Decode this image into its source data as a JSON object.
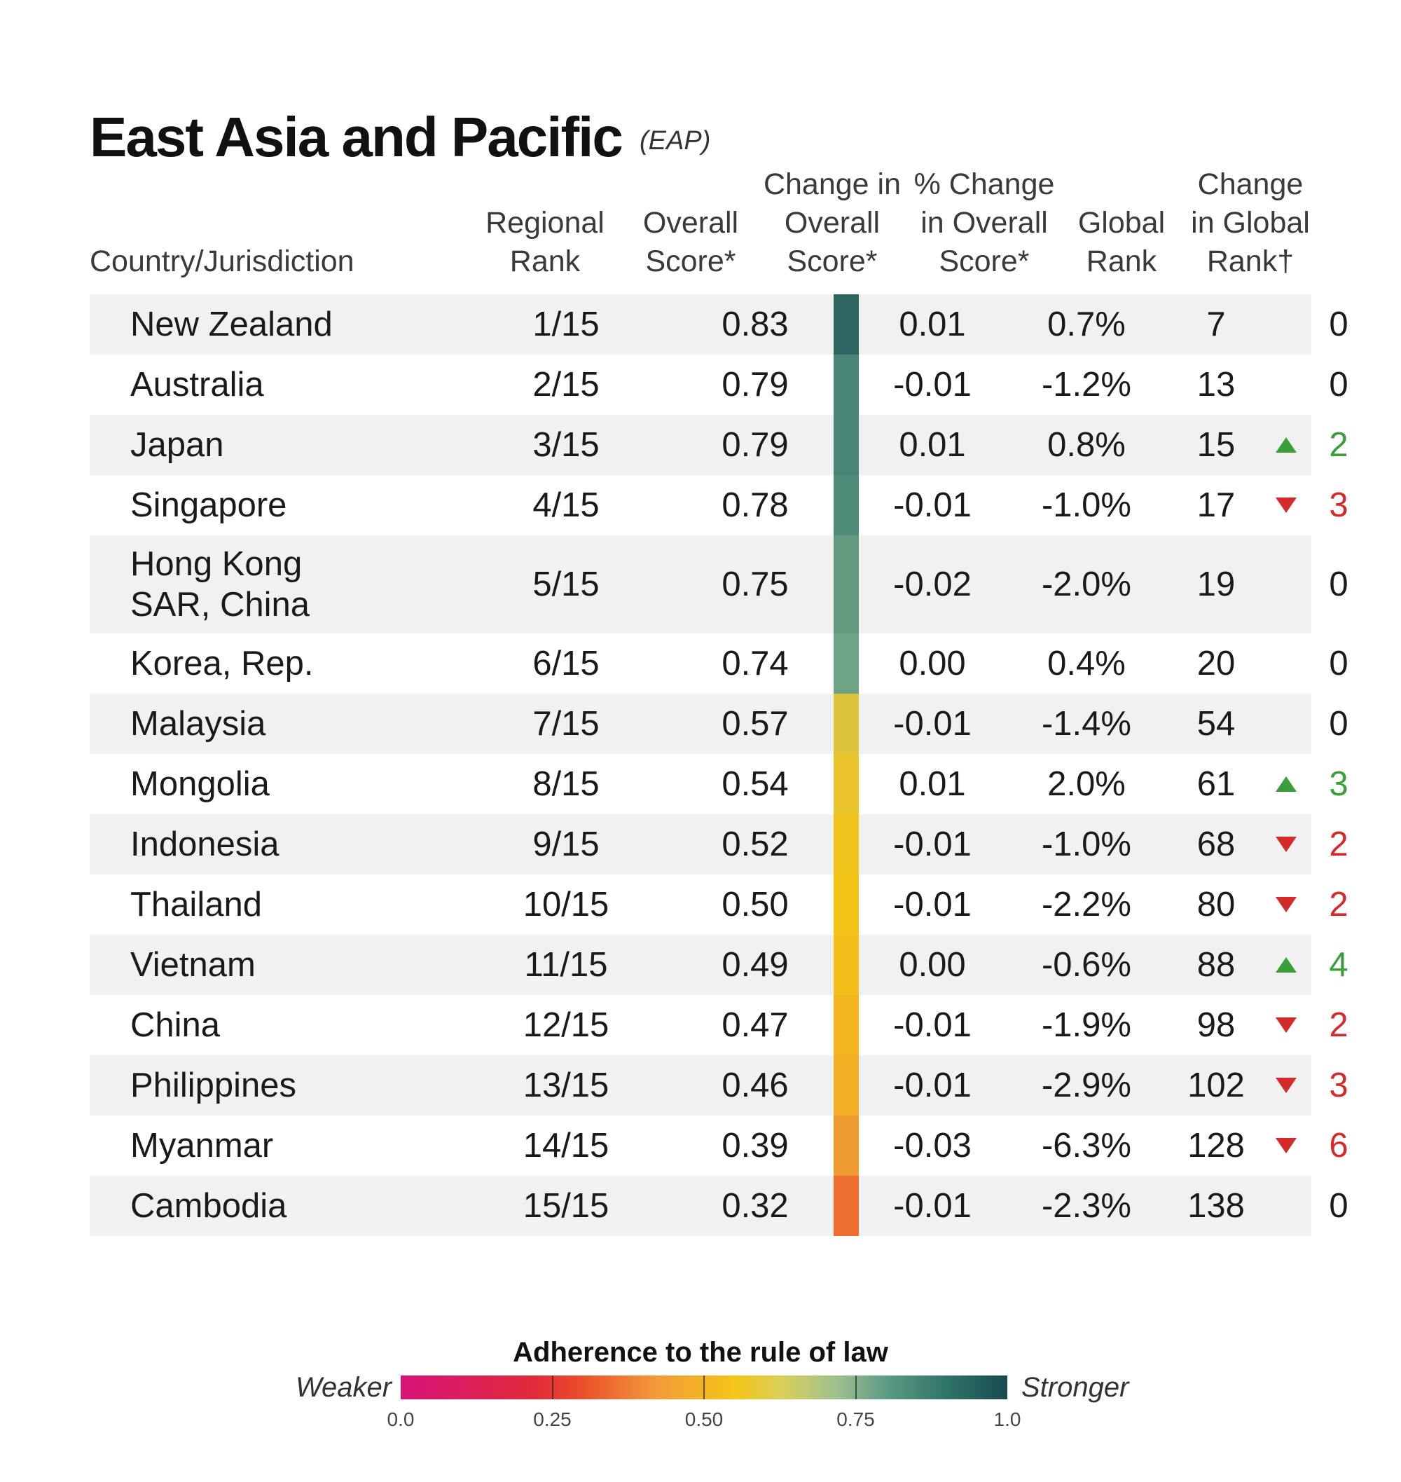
{
  "chart_data": {
    "type": "table",
    "title": "East Asia and Pacific",
    "subtitle": "(EAP)",
    "columns": [
      "Country/Jurisdiction",
      "Regional\nRank",
      "Overall\nScore*",
      "Change in\nOverall\nScore*",
      "% Change\nin Overall\nScore*",
      "Global\nRank",
      "Change\nin Global\nRank†"
    ],
    "rows": [
      {
        "country": "New Zealand",
        "regional_rank": "1/15",
        "score": "0.83",
        "score_value": 0.83,
        "color": "#2d6663",
        "change": "0.01",
        "pct_change": "0.7%",
        "global_rank": "7",
        "rank_change": "0",
        "direction": "none"
      },
      {
        "country": "Australia",
        "regional_rank": "2/15",
        "score": "0.79",
        "score_value": 0.79,
        "color": "#488576",
        "change": "-0.01",
        "pct_change": "-1.2%",
        "global_rank": "13",
        "rank_change": "0",
        "direction": "none"
      },
      {
        "country": "Japan",
        "regional_rank": "3/15",
        "score": "0.79",
        "score_value": 0.79,
        "color": "#488576",
        "change": "0.01",
        "pct_change": "0.8%",
        "global_rank": "15",
        "rank_change": "2",
        "direction": "up"
      },
      {
        "country": "Singapore",
        "regional_rank": "4/15",
        "score": "0.78",
        "score_value": 0.78,
        "color": "#4e8b79",
        "change": "-0.01",
        "pct_change": "-1.0%",
        "global_rank": "17",
        "rank_change": "3",
        "direction": "down"
      },
      {
        "country": "Hong Kong\nSAR, China",
        "regional_rank": "5/15",
        "score": "0.75",
        "score_value": 0.75,
        "color": "#63997f",
        "change": "-0.02",
        "pct_change": "-2.0%",
        "global_rank": "19",
        "rank_change": "0",
        "direction": "none"
      },
      {
        "country": "Korea, Rep.",
        "regional_rank": "6/15",
        "score": "0.74",
        "score_value": 0.74,
        "color": "#6ea385",
        "change": "0.00",
        "pct_change": "0.4%",
        "global_rank": "20",
        "rank_change": "0",
        "direction": "none"
      },
      {
        "country": "Malaysia",
        "regional_rank": "7/15",
        "score": "0.57",
        "score_value": 0.57,
        "color": "#dcc43c",
        "change": "-0.01",
        "pct_change": "-1.4%",
        "global_rank": "54",
        "rank_change": "0",
        "direction": "none"
      },
      {
        "country": "Mongolia",
        "regional_rank": "8/15",
        "score": "0.54",
        "score_value": 0.54,
        "color": "#e9c42a",
        "change": "0.01",
        "pct_change": "2.0%",
        "global_rank": "61",
        "rank_change": "3",
        "direction": "up"
      },
      {
        "country": "Indonesia",
        "regional_rank": "9/15",
        "score": "0.52",
        "score_value": 0.52,
        "color": "#f0c41d",
        "change": "-0.01",
        "pct_change": "-1.0%",
        "global_rank": "68",
        "rank_change": "2",
        "direction": "down"
      },
      {
        "country": "Thailand",
        "regional_rank": "10/15",
        "score": "0.50",
        "score_value": 0.5,
        "color": "#f4c318",
        "change": "-0.01",
        "pct_change": "-2.2%",
        "global_rank": "80",
        "rank_change": "2",
        "direction": "down"
      },
      {
        "country": "Vietnam",
        "regional_rank": "11/15",
        "score": "0.49",
        "score_value": 0.49,
        "color": "#f4bf1a",
        "change": "0.00",
        "pct_change": "-0.6%",
        "global_rank": "88",
        "rank_change": "4",
        "direction": "up"
      },
      {
        "country": "China",
        "regional_rank": "12/15",
        "score": "0.47",
        "score_value": 0.47,
        "color": "#f3b61f",
        "change": "-0.01",
        "pct_change": "-1.9%",
        "global_rank": "98",
        "rank_change": "2",
        "direction": "down"
      },
      {
        "country": "Philippines",
        "regional_rank": "13/15",
        "score": "0.46",
        "score_value": 0.46,
        "color": "#f3b024",
        "change": "-0.01",
        "pct_change": "-2.9%",
        "global_rank": "102",
        "rank_change": "3",
        "direction": "down"
      },
      {
        "country": "Myanmar",
        "regional_rank": "14/15",
        "score": "0.39",
        "score_value": 0.39,
        "color": "#ef9b32",
        "change": "-0.03",
        "pct_change": "-6.3%",
        "global_rank": "128",
        "rank_change": "6",
        "direction": "down"
      },
      {
        "country": "Cambodia",
        "regional_rank": "15/15",
        "score": "0.32",
        "score_value": 0.32,
        "color": "#ec6f2f",
        "change": "-0.01",
        "pct_change": "-2.3%",
        "global_rank": "138",
        "rank_change": "0",
        "direction": "none"
      }
    ],
    "legend": {
      "title": "Adherence to the rule of law",
      "low_label": "Weaker",
      "high_label": "Stronger",
      "ticks": [
        "0.0",
        "0.25",
        "0.50",
        "0.75",
        "1.0"
      ],
      "tick_values": [
        0,
        0.25,
        0.5,
        0.75,
        1.0
      ],
      "range": [
        0,
        1
      ]
    }
  },
  "colors": {
    "up": "#3a9f3a",
    "down": "#d42a2a",
    "row_shade": "#f1f1f1"
  }
}
